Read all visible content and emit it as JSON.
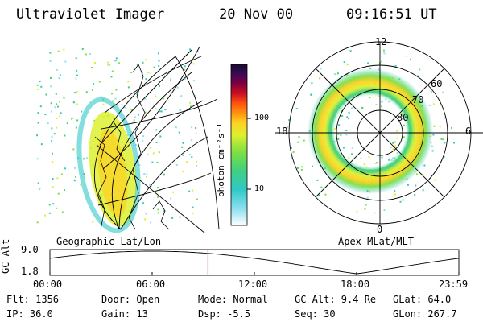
{
  "header": {
    "instrument": "Ultraviolet Imager",
    "date": "20 Nov 00",
    "time": "09:16:51 UT"
  },
  "left_panel": {
    "label": "Geographic Lat/Lon"
  },
  "right_panel": {
    "label": "Apex MLat/MLT",
    "mlt_labels": {
      "top": "12",
      "left": "18",
      "right": "6",
      "bottom": "0"
    },
    "lat_labels": [
      "60",
      "70",
      "80"
    ]
  },
  "colorbar": {
    "unit": "photon cm⁻²s⁻¹",
    "ticks": [
      {
        "label": "100",
        "value": 100
      },
      {
        "label": "10",
        "value": 10
      }
    ],
    "colors": [
      "#1a0a33",
      "#3a0a55",
      "#800040",
      "#c81020",
      "#ff5010",
      "#ff9010",
      "#ffd020",
      "#ddf030",
      "#80e040",
      "#40d080",
      "#30c8c8",
      "#90e0f0",
      "#ffffff"
    ]
  },
  "altitude_plot": {
    "ylabel": "GC Alt",
    "yticks": [
      "9.0",
      "1.8"
    ],
    "xticks": [
      "00:00",
      "06:00",
      "12:00",
      "18:00",
      "23:59"
    ],
    "marker_time_hours": 9.28,
    "ylim": [
      1.8,
      9.0
    ]
  },
  "info": {
    "flt": "Flt: 1356",
    "ip": "IP: 36.0",
    "door": "Door: Open",
    "gain": "Gain: 13",
    "mode": "Mode: Normal",
    "dsp": "Dsp:    -5.5",
    "gcalt": "GC Alt: 9.4 Re",
    "seq": "Seq: 30",
    "glat": "GLat:  64.0",
    "glon": "GLon: 267.7"
  }
}
